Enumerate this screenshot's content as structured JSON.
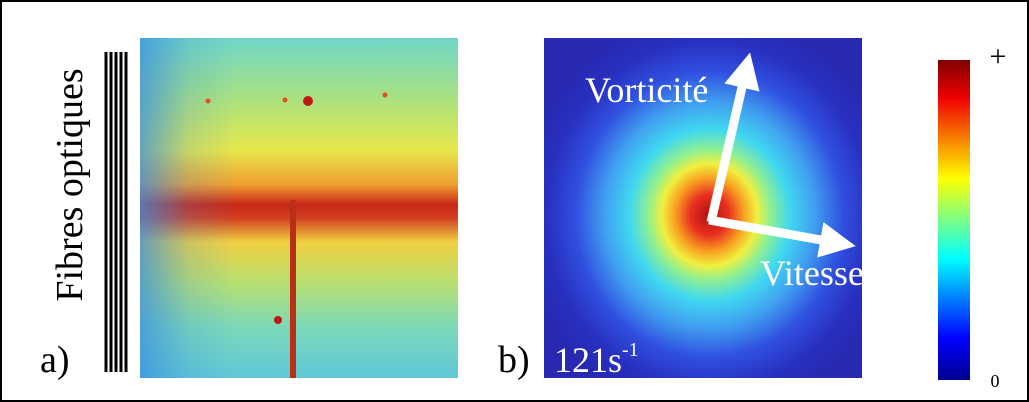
{
  "panel_a": {
    "label": "a)",
    "side_label": "Fibres optiques"
  },
  "panel_b": {
    "label": "b)",
    "shear_rate": "121s",
    "shear_rate_exponent": "-1",
    "vorticity_label": "Vorticité",
    "velocity_label": "Vitesse"
  },
  "colorbar": {
    "max_label": "+",
    "min_label": "0"
  }
}
